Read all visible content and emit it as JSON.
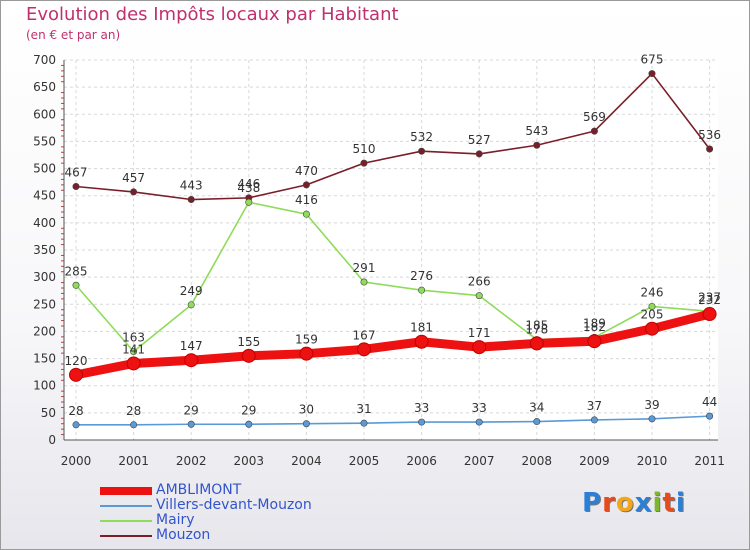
{
  "header": {
    "title": "Evolution des Impôts locaux par Habitant",
    "subtitle": "(en € et par an)"
  },
  "logo": {
    "text": "Proxiti",
    "colors": [
      "#2b7fd4",
      "#e84a1e",
      "#f2a71b",
      "#2b7fd4",
      "#7cb82f",
      "#e84a1e",
      "#2b7fd4"
    ]
  },
  "chart_data": {
    "type": "line",
    "title": "Evolution des Impôts locaux par Habitant",
    "subtitle": "(en € et par an)",
    "xlabel": "",
    "ylabel": "",
    "x": [
      "2000",
      "2001",
      "2002",
      "2003",
      "2004",
      "2005",
      "2006",
      "2007",
      "2008",
      "2009",
      "2010",
      "2011"
    ],
    "ylim": [
      0,
      700
    ],
    "yticks": [
      "0",
      "50",
      "100",
      "150",
      "200",
      "250",
      "300",
      "350",
      "400",
      "450",
      "500",
      "550",
      "600",
      "650",
      "700"
    ],
    "grid": true,
    "legend_position": "bottom-left",
    "series": [
      {
        "name": "Mouzon",
        "color": "#7a1f2a",
        "style": "thin",
        "values": [
          467,
          457,
          443,
          446,
          470,
          510,
          532,
          527,
          543,
          569,
          675,
          536
        ],
        "labels": [
          "467",
          "457",
          "443",
          "446",
          "470",
          "510",
          "532",
          "527",
          "543",
          "569",
          "675",
          "536"
        ]
      },
      {
        "name": "Mairy",
        "color": "#8edc5a",
        "style": "thin",
        "values": [
          285,
          163,
          249,
          438,
          416,
          291,
          276,
          266,
          185,
          189,
          246,
          237
        ],
        "labels": [
          "285",
          "163",
          "249",
          "438",
          "416",
          "291",
          "276",
          "266",
          "185",
          "189",
          "246",
          "237"
        ]
      },
      {
        "name": "Villers-devant-Mouzon",
        "color": "#5a9ad6",
        "style": "thin",
        "values": [
          28,
          28,
          29,
          29,
          30,
          31,
          33,
          33,
          34,
          37,
          39,
          44
        ],
        "labels": [
          "28",
          "28",
          "29",
          "29",
          "30",
          "31",
          "33",
          "33",
          "34",
          "37",
          "39",
          "44"
        ]
      },
      {
        "name": "AMBLIMONT",
        "color": "#ee1111",
        "style": "thick",
        "values": [
          120,
          141,
          147,
          155,
          159,
          167,
          181,
          171,
          178,
          182,
          205,
          232
        ],
        "labels": [
          "120",
          "141",
          "147",
          "155",
          "159",
          "167",
          "181",
          "171",
          "178",
          "182",
          "205",
          "232"
        ]
      }
    ],
    "legend": [
      "AMBLIMONT",
      "Villers-devant-Mouzon",
      "Mairy",
      "Mouzon"
    ]
  }
}
